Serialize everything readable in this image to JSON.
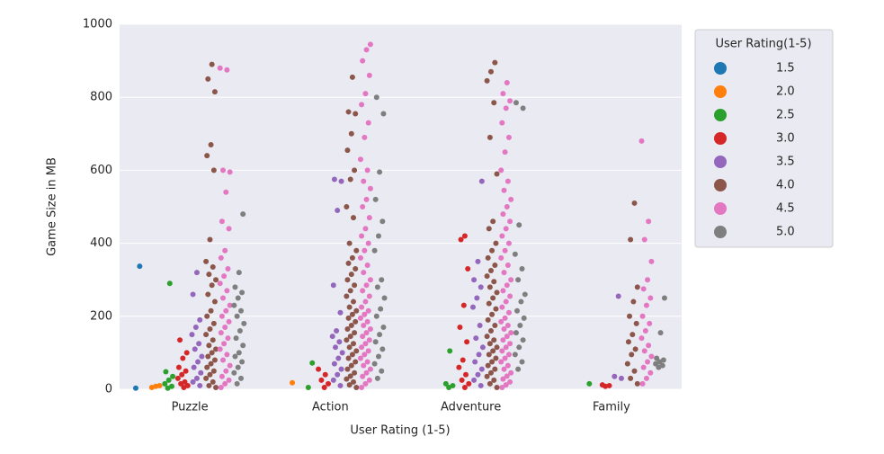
{
  "chart_data": {
    "type": "strip",
    "x_label": "User Rating (1-5)",
    "y_label": "Game Size in MB",
    "categories": [
      "Puzzle",
      "Action",
      "Adventure",
      "Family"
    ],
    "ylim": [
      0,
      1000
    ],
    "yticks": [
      0,
      200,
      400,
      600,
      800,
      1000
    ],
    "grid": true,
    "legend_title": "User Rating(1-5)",
    "legend": "outside-right",
    "series": [
      {
        "name": "1.5",
        "color": "#1f77b4",
        "values": [
          [
            3,
            337
          ],
          [],
          [],
          []
        ]
      },
      {
        "name": "2.0",
        "color": "#ff7f0e",
        "values": [
          [
            5,
            8,
            10
          ],
          [
            18
          ],
          [],
          []
        ]
      },
      {
        "name": "2.5",
        "color": "#2ca02c",
        "values": [
          [
            3,
            8,
            15,
            25,
            35,
            48,
            290
          ],
          [
            5,
            72
          ],
          [
            5,
            10,
            15,
            105
          ],
          [
            15
          ]
        ]
      },
      {
        "name": "3.0",
        "color": "#d62728",
        "values": [
          [
            5,
            10,
            15,
            20,
            30,
            40,
            50,
            60,
            85,
            100,
            135
          ],
          [
            5,
            15,
            25,
            40,
            55
          ],
          [
            5,
            15,
            25,
            40,
            60,
            80,
            130,
            170,
            230,
            330,
            410,
            420
          ],
          [
            8,
            10,
            12
          ]
        ]
      },
      {
        "name": "3.5",
        "color": "#9467bd",
        "values": [
          [
            10,
            20,
            30,
            45,
            60,
            75,
            90,
            110,
            125,
            150,
            170,
            190,
            260,
            320
          ],
          [
            10,
            25,
            40,
            55,
            70,
            85,
            100,
            115,
            130,
            145,
            160,
            210,
            285,
            490,
            570,
            575
          ],
          [
            10,
            25,
            40,
            55,
            75,
            95,
            115,
            140,
            175,
            225,
            250,
            280,
            300,
            350,
            570
          ],
          [
            30,
            35,
            255
          ]
        ]
      },
      {
        "name": "4.0",
        "color": "#8c564b",
        "values": [
          [
            5,
            10,
            20,
            30,
            40,
            50,
            60,
            70,
            80,
            90,
            100,
            110,
            120,
            135,
            150,
            165,
            180,
            200,
            215,
            240,
            260,
            285,
            300,
            315,
            335,
            350,
            410,
            600,
            640,
            670,
            815,
            850,
            890
          ],
          [
            5,
            12,
            20,
            28,
            36,
            45,
            55,
            65,
            75,
            85,
            95,
            105,
            115,
            125,
            135,
            145,
            155,
            165,
            175,
            185,
            195,
            205,
            215,
            225,
            240,
            255,
            270,
            285,
            300,
            315,
            330,
            345,
            360,
            380,
            400,
            470,
            500,
            575,
            600,
            655,
            700,
            755,
            760,
            855
          ],
          [
            5,
            15,
            25,
            35,
            45,
            55,
            65,
            75,
            85,
            95,
            105,
            115,
            125,
            135,
            145,
            160,
            175,
            190,
            205,
            220,
            235,
            250,
            265,
            280,
            295,
            310,
            325,
            340,
            360,
            380,
            400,
            440,
            460,
            590,
            690,
            785,
            845,
            870,
            895
          ],
          [
            15,
            30,
            50,
            70,
            95,
            110,
            130,
            150,
            180,
            200,
            240,
            280,
            410,
            510
          ]
        ]
      },
      {
        "name": "4.5",
        "color": "#e377c2",
        "values": [
          [
            5,
            15,
            25,
            35,
            50,
            65,
            80,
            95,
            110,
            125,
            140,
            155,
            170,
            185,
            200,
            215,
            230,
            250,
            270,
            290,
            310,
            330,
            360,
            380,
            440,
            460,
            540,
            595,
            600,
            875,
            880
          ],
          [
            5,
            15,
            25,
            35,
            45,
            55,
            65,
            75,
            85,
            95,
            105,
            115,
            125,
            135,
            145,
            155,
            165,
            175,
            185,
            195,
            205,
            215,
            225,
            240,
            255,
            270,
            285,
            300,
            320,
            340,
            360,
            380,
            400,
            420,
            440,
            470,
            500,
            520,
            550,
            570,
            600,
            630,
            690,
            730,
            780,
            810,
            860,
            900,
            930,
            945
          ],
          [
            5,
            12,
            20,
            28,
            36,
            45,
            55,
            65,
            75,
            85,
            95,
            105,
            115,
            125,
            135,
            145,
            155,
            165,
            175,
            185,
            195,
            210,
            225,
            240,
            255,
            270,
            285,
            300,
            320,
            340,
            360,
            380,
            400,
            420,
            440,
            460,
            480,
            500,
            520,
            545,
            570,
            600,
            650,
            690,
            730,
            770,
            790,
            810,
            840
          ],
          [
            15,
            30,
            45,
            60,
            75,
            90,
            105,
            120,
            140,
            160,
            180,
            200,
            230,
            250,
            275,
            300,
            350,
            410,
            460,
            680
          ]
        ]
      },
      {
        "name": "5.0",
        "color": "#7f7f7f",
        "values": [
          [
            15,
            30,
            45,
            60,
            75,
            90,
            100,
            120,
            140,
            160,
            180,
            200,
            215,
            230,
            250,
            265,
            280,
            320,
            480
          ],
          [
            30,
            50,
            70,
            90,
            110,
            130,
            150,
            170,
            200,
            220,
            250,
            280,
            300,
            380,
            420,
            460,
            520,
            595,
            755,
            800
          ],
          [
            55,
            75,
            95,
            115,
            135,
            155,
            175,
            195,
            215,
            240,
            260,
            300,
            330,
            370,
            450,
            770,
            785
          ],
          [
            60,
            65,
            70,
            75,
            80,
            85,
            155,
            250
          ]
        ]
      }
    ]
  }
}
